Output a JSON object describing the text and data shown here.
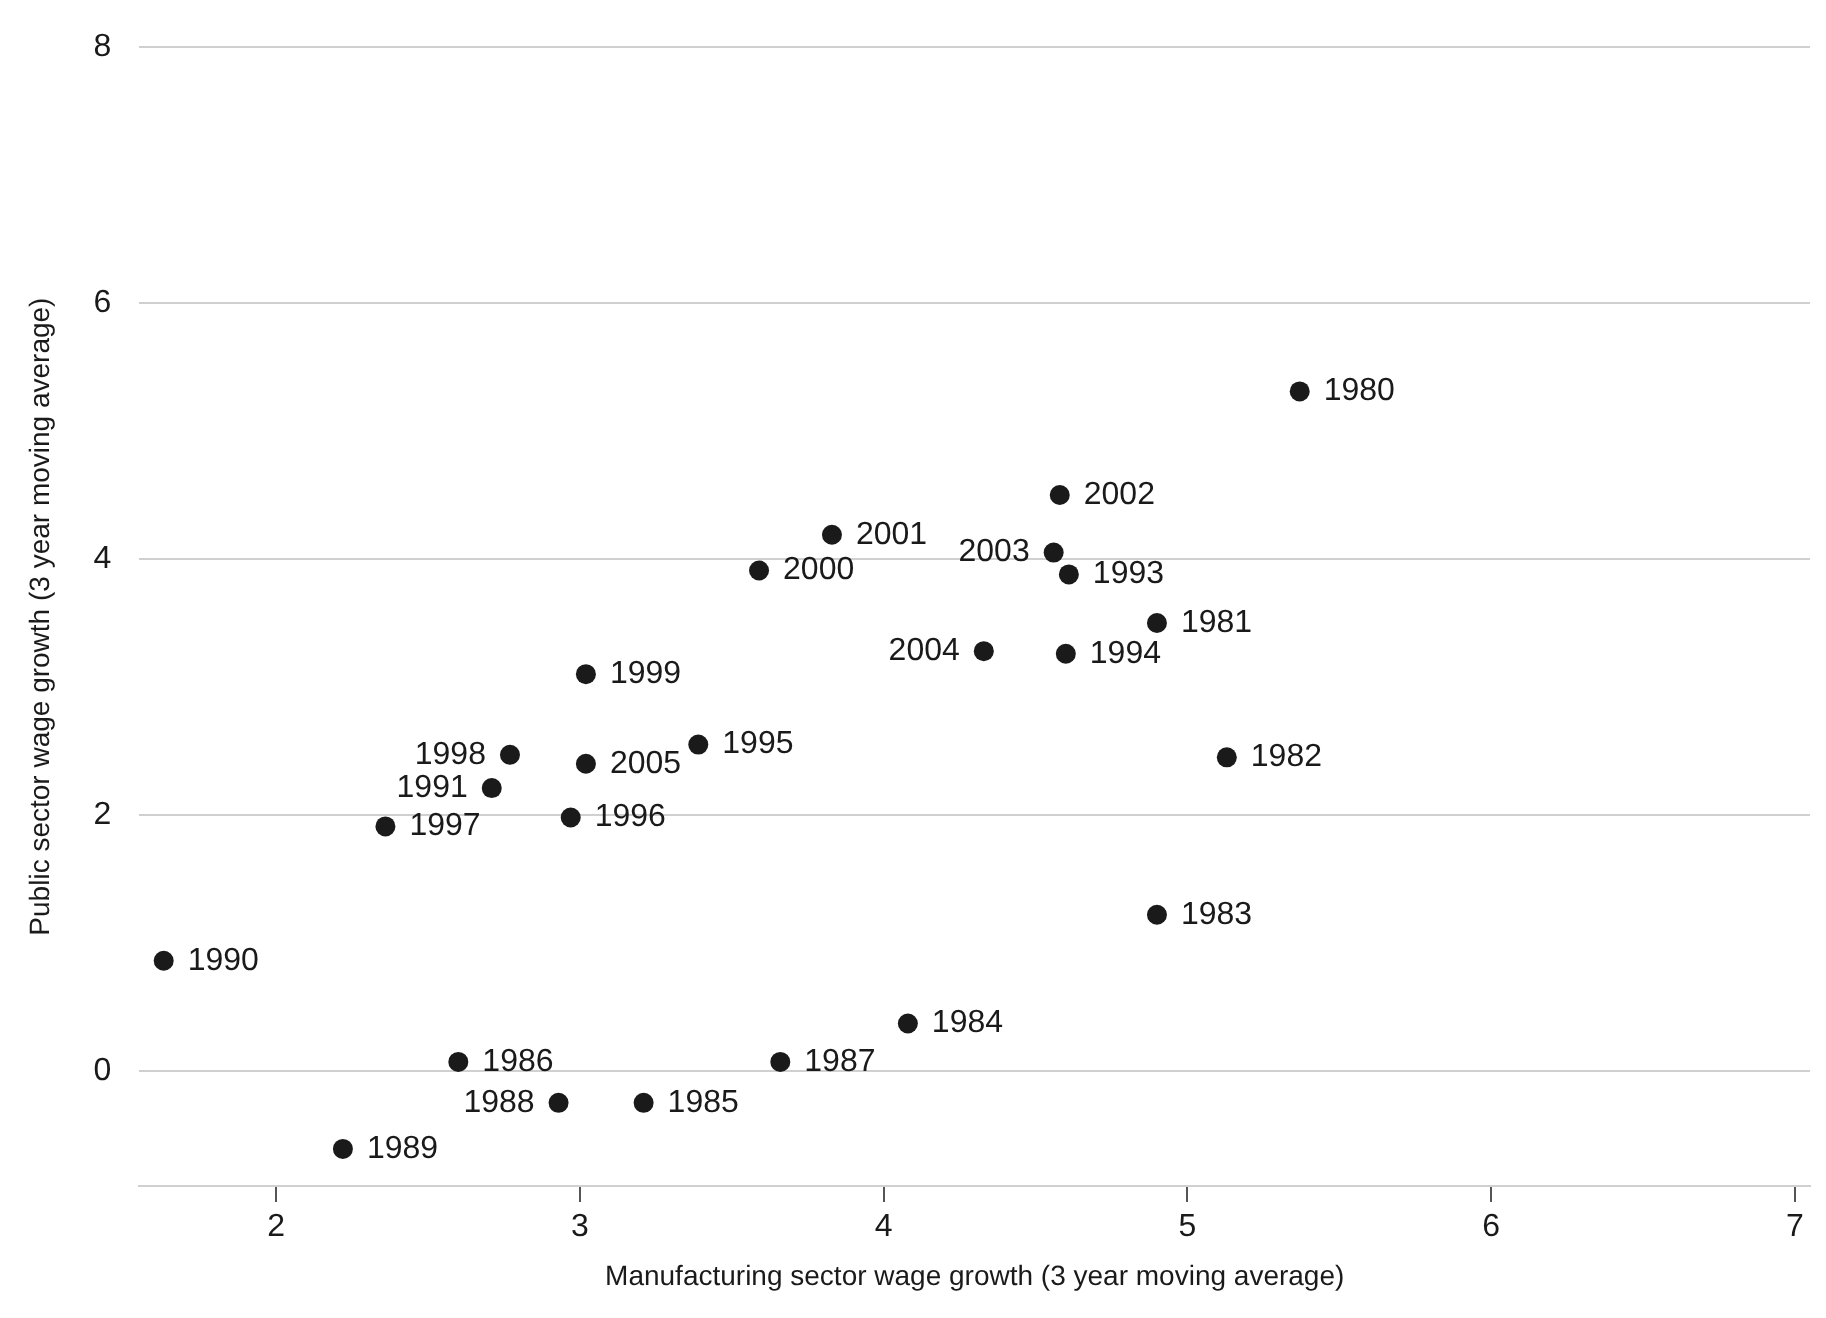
{
  "chart_data": {
    "type": "scatter",
    "xlabel": "Manufacturing sector wage growth (3 year moving average)",
    "ylabel": "Public sector wage growth (3 year moving average)",
    "x": [
      5.37,
      4.9,
      5.13,
      4.9,
      4.08,
      3.21,
      2.6,
      3.66,
      2.93,
      2.22,
      1.63,
      2.71,
      4.61,
      4.6,
      3.39,
      2.97,
      2.36,
      2.77,
      3.02,
      3.59,
      3.83,
      4.58,
      4.56,
      4.33,
      3.02
    ],
    "series": [
      {
        "color": "#1a1a1a",
        "values": [
          5.31,
          3.5,
          2.45,
          1.22,
          0.37,
          -0.25,
          0.07,
          0.07,
          -0.25,
          -0.61,
          0.86,
          2.21,
          3.88,
          3.26,
          2.55,
          1.98,
          1.91,
          2.47,
          3.1,
          3.91,
          4.19,
          4.5,
          4.05,
          3.28,
          2.4
        ]
      }
    ],
    "annotations": [
      {
        "text": "1980",
        "x": 5.37,
        "y": 5.31
      },
      {
        "text": "1981",
        "x": 4.9,
        "y": 3.5
      },
      {
        "text": "1982",
        "x": 5.13,
        "y": 2.45
      },
      {
        "text": "1983",
        "x": 4.9,
        "y": 1.22
      },
      {
        "text": "1984",
        "x": 4.08,
        "y": 0.37
      },
      {
        "text": "1985",
        "x": 3.21,
        "y": -0.25
      },
      {
        "text": "1986",
        "x": 2.6,
        "y": 0.07
      },
      {
        "text": "1987",
        "x": 3.66,
        "y": 0.07
      },
      {
        "text": "1988",
        "x": 2.93,
        "y": -0.25
      },
      {
        "text": "1989",
        "x": 2.22,
        "y": -0.61
      },
      {
        "text": "1990",
        "x": 1.63,
        "y": 0.86
      },
      {
        "text": "1991",
        "x": 2.71,
        "y": 2.21
      },
      {
        "text": "1993",
        "x": 4.61,
        "y": 3.88
      },
      {
        "text": "1994",
        "x": 4.6,
        "y": 3.26
      },
      {
        "text": "1995",
        "x": 3.39,
        "y": 2.55
      },
      {
        "text": "1996",
        "x": 2.97,
        "y": 1.98
      },
      {
        "text": "1997",
        "x": 2.36,
        "y": 1.91
      },
      {
        "text": "1998",
        "x": 2.77,
        "y": 2.47
      },
      {
        "text": "1999",
        "x": 3.02,
        "y": 3.1
      },
      {
        "text": "2000",
        "x": 3.59,
        "y": 3.91
      },
      {
        "text": "2001",
        "x": 3.83,
        "y": 4.19
      },
      {
        "text": "2002",
        "x": 4.58,
        "y": 4.5
      },
      {
        "text": "2003",
        "x": 4.56,
        "y": 4.05
      },
      {
        "text": "2004",
        "x": 4.33,
        "y": 3.28
      },
      {
        "text": "2005",
        "x": 3.02,
        "y": 2.4
      }
    ],
    "xlim": [
      1.55,
      7.05
    ],
    "ylim": [
      -0.9,
      8
    ],
    "xticks": [
      2,
      3,
      4,
      5,
      6,
      7
    ],
    "yticks": [
      0,
      2,
      4,
      6,
      8
    ],
    "grid": "y",
    "marker": "circle",
    "legend": false
  }
}
